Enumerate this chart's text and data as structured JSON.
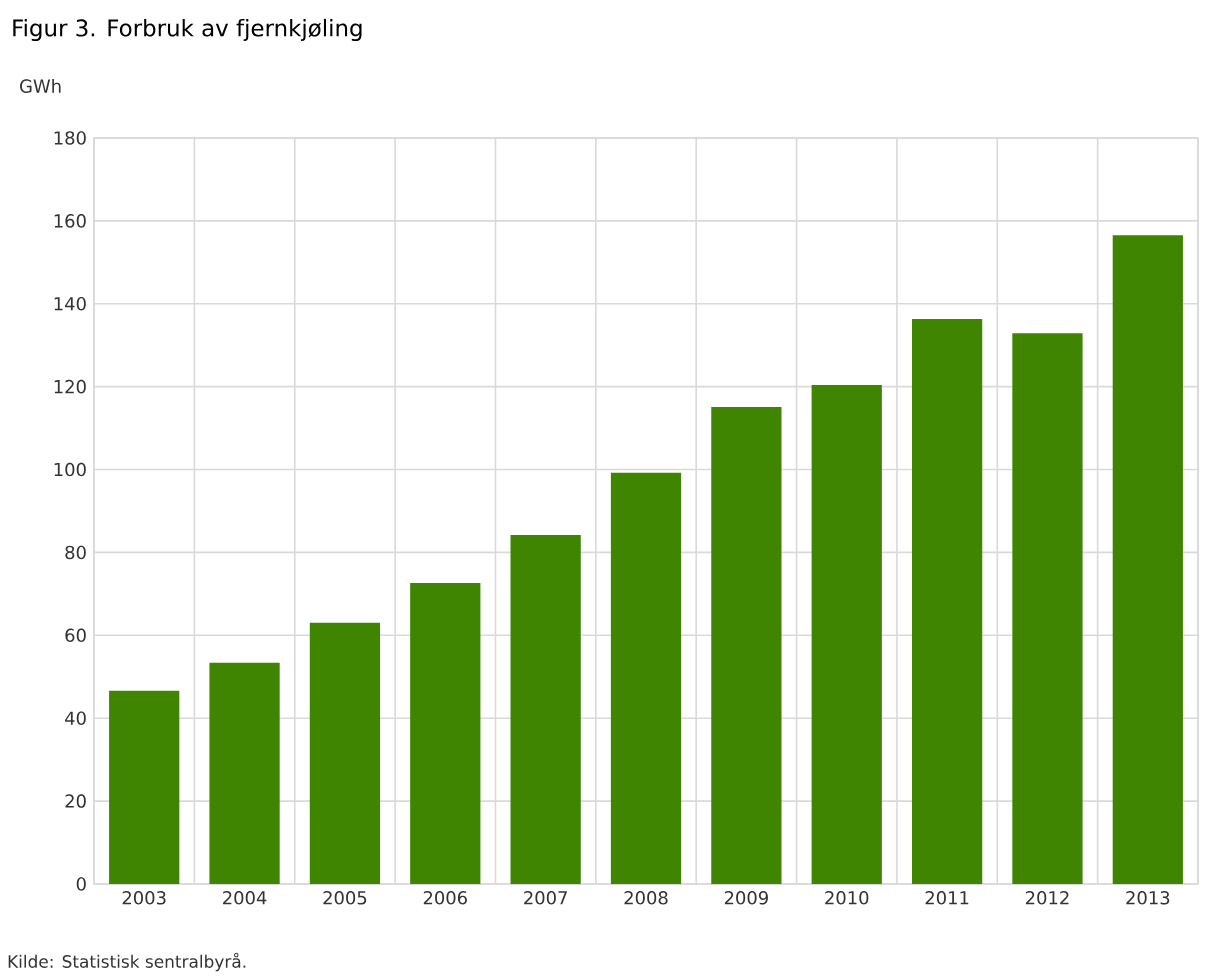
{
  "chart_data": {
    "type": "bar",
    "title": "Figur 3. Forbruk av fjernkjøling",
    "ylabel": "GWh",
    "categories": [
      "2003",
      "2004",
      "2005",
      "2006",
      "2007",
      "2008",
      "2009",
      "2010",
      "2011",
      "2012",
      "2013"
    ],
    "values": [
      46.6,
      53.4,
      63.0,
      72.6,
      84.2,
      99.2,
      115.1,
      120.4,
      136.3,
      132.9,
      156.5
    ],
    "color": "#3f8502",
    "ylim": [
      0,
      180
    ],
    "yticks": [
      0,
      20,
      40,
      60,
      80,
      100,
      120,
      140,
      160,
      180
    ],
    "grid": true,
    "annotations": [
      "Kilde: Statistisk sentralbyrå."
    ]
  }
}
